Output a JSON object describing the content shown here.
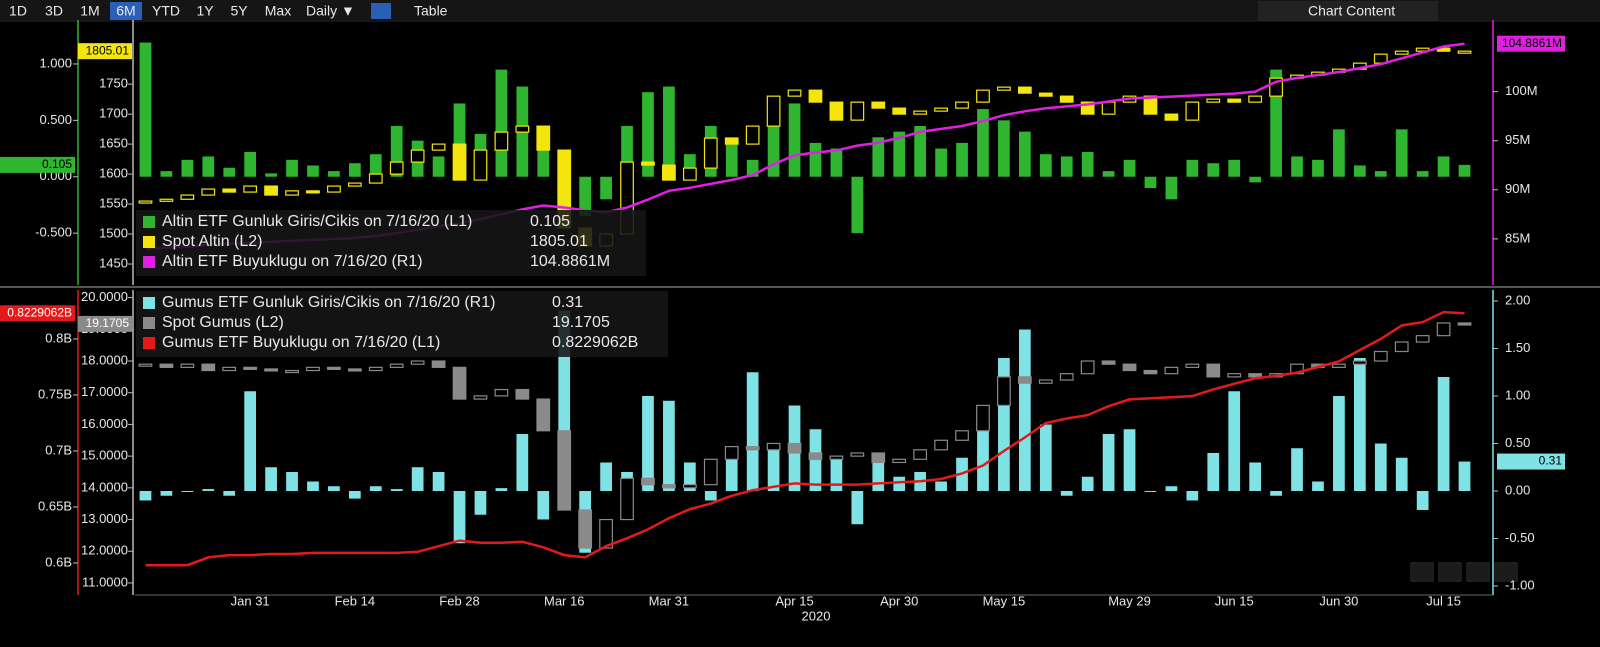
{
  "toolbar": {
    "ranges": [
      "1D",
      "3D",
      "1M",
      "6M",
      "YTD",
      "1Y",
      "5Y",
      "Max"
    ],
    "active": "6M",
    "interval": "Daily ▼",
    "table": "Table",
    "menu": "Chart Content"
  },
  "chart_data": {
    "type": "combo",
    "xlabel": "2020",
    "categories": [
      null,
      null,
      null,
      null,
      null,
      "Jan 31",
      null,
      null,
      null,
      null,
      "Feb 14",
      null,
      null,
      null,
      null,
      "Feb 28",
      null,
      null,
      null,
      null,
      "Mar 16",
      null,
      null,
      null,
      null,
      "Mar 31",
      null,
      null,
      null,
      null,
      null,
      "Apr 15",
      null,
      null,
      null,
      null,
      "Apr 30",
      null,
      null,
      null,
      null,
      "May 15",
      null,
      null,
      null,
      null,
      null,
      "May 29",
      null,
      null,
      null,
      null,
      "Jun 15",
      null,
      null,
      null,
      null,
      "Jun 30",
      null,
      null,
      null,
      null,
      "Jul 15",
      null
    ],
    "panels": [
      {
        "type": "combo",
        "axes": {
          "L1": {
            "lim": [
              -0.96,
              1.39
            ],
            "ticks": [
              {
                "value": -0.5,
                "label": "-0.500"
              },
              {
                "value": 0,
                "label": "0.000"
              },
              {
                "value": 0.5,
                "label": "0.500"
              },
              {
                "value": 1,
                "label": "1.000"
              }
            ]
          },
          "L2": {
            "lim": [
              1415,
              1857
            ],
            "ticks": [
              1450,
              1500,
              1550,
              1600,
              1650,
              1700,
              1750
            ]
          },
          "R1": {
            "lim": [
              80.3,
              107.3
            ],
            "ticks": [
              {
                "value": 85,
                "label": "85M"
              },
              {
                "value": 90,
                "label": "90M"
              },
              {
                "value": 95,
                "label": "95M"
              },
              {
                "value": 100,
                "label": "100M"
              }
            ]
          }
        },
        "series": [
          {
            "name": "Altin ETF Gunluk Giris/Cikis on 7/16/20 (L1)",
            "type": "bar",
            "axis": "L1",
            "color": "#2fb52f",
            "values": [
              1.19,
              0.05,
              0.15,
              0.18,
              0.08,
              0.22,
              0.03,
              0.15,
              0.1,
              0.05,
              0.12,
              0.2,
              0.45,
              0.32,
              0.18,
              0.65,
              0.38,
              0.95,
              0.8,
              0.25,
              -0.25,
              -0.35,
              -0.2,
              0.45,
              0.75,
              0.8,
              0.2,
              0.45,
              0.35,
              0.15,
              0.55,
              0.65,
              0.3,
              0.25,
              -0.5,
              0.35,
              0.4,
              0.45,
              0.25,
              0.3,
              0.6,
              0.5,
              0.4,
              0.2,
              0.18,
              0.22,
              0.05,
              0.15,
              -0.1,
              -0.2,
              0.15,
              0.12,
              0.15,
              -0.05,
              0.95,
              0.18,
              0.15,
              0.42,
              0.1,
              0.05,
              0.42,
              0.05,
              0.18,
              0.105
            ]
          },
          {
            "name": "Spot Altin (L2)",
            "type": "candle",
            "axis": "L2",
            "color": "#f4e60c",
            "values": [
              1555,
              1558,
              1565,
              1575,
              1570,
              1580,
              1565,
              1572,
              1570,
              1580,
              1585,
              1600,
              1620,
              1640,
              1650,
              1590,
              1640,
              1670,
              1680,
              1640,
              1510,
              1480,
              1500,
              1620,
              1615,
              1590,
              1610,
              1660,
              1650,
              1680,
              1730,
              1740,
              1720,
              1690,
              1720,
              1710,
              1700,
              1705,
              1710,
              1720,
              1740,
              1745,
              1735,
              1730,
              1720,
              1700,
              1720,
              1730,
              1700,
              1690,
              1720,
              1725,
              1720,
              1730,
              1760,
              1765,
              1770,
              1775,
              1785,
              1800,
              1805,
              1810,
              1805,
              1805.01
            ]
          },
          {
            "name": "Altin ETF Buyuklugu on 7/16/20 (R1)",
            "type": "line",
            "axis": "R1",
            "color": "#e020e0",
            "current_label": "104.8861M",
            "values": [
              84.0,
              84.1,
              84.2,
              84.4,
              84.5,
              84.6,
              84.7,
              84.8,
              84.9,
              85.0,
              85.1,
              85.3,
              85.6,
              85.9,
              86.3,
              86.6,
              87.0,
              87.5,
              88.0,
              88.4,
              88.2,
              87.9,
              87.7,
              88.2,
              89.0,
              89.9,
              90.2,
              90.6,
              91.0,
              91.5,
              92.6,
              93.5,
              93.8,
              94.0,
              94.5,
              94.8,
              95.3,
              95.9,
              96.2,
              96.5,
              97.0,
              97.6,
              98.0,
              98.3,
              98.5,
              98.7,
              99.0,
              99.3,
              99.4,
              99.5,
              99.6,
              99.7,
              99.8,
              100.0,
              101.0,
              101.4,
              101.7,
              102.0,
              102.4,
              102.8,
              103.4,
              104.0,
              104.6,
              104.8861
            ]
          }
        ]
      },
      {
        "type": "combo",
        "axes": {
          "L1": {
            "lim": [
              0.5714,
              0.8437
            ],
            "ticks": [
              {
                "value": 0.6,
                "label": "0.6B"
              },
              {
                "value": 0.65,
                "label": "0.65B"
              },
              {
                "value": 0.7,
                "label": "0.7B"
              },
              {
                "value": 0.75,
                "label": "0.75B"
              },
              {
                "value": 0.8,
                "label": "0.8B"
              }
            ]
          },
          "L2": {
            "lim": [
              10.62,
              20.24
            ],
            "ticks": [
              {
                "value": 11,
                "label": "11.0000"
              },
              {
                "value": 12,
                "label": "12.0000"
              },
              {
                "value": 13,
                "label": "13.0000"
              },
              {
                "value": 14,
                "label": "14.0000"
              },
              {
                "value": 15,
                "label": "15.0000"
              },
              {
                "value": 16,
                "label": "16.0000"
              },
              {
                "value": 17,
                "label": "17.0000"
              },
              {
                "value": 18,
                "label": "18.0000"
              },
              {
                "value": 19,
                "label": "19.0000"
              },
              {
                "value": 20,
                "label": "20.0000"
              }
            ]
          },
          "R1": {
            "lim": [
              -1.095,
              2.116
            ],
            "ticks": [
              {
                "value": -1,
                "label": "-1.00"
              },
              {
                "value": -0.5,
                "label": "-0.50"
              },
              {
                "value": 0,
                "label": "0.00"
              },
              {
                "value": 0.5,
                "label": "0.50"
              },
              {
                "value": 1,
                "label": "1.00"
              },
              {
                "value": 1.5,
                "label": "1.50"
              },
              {
                "value": 2,
                "label": "2.00"
              }
            ]
          }
        },
        "series": [
          {
            "name": "Gumus ETF Gunluk Giris/Cikis on 7/16/20 (R1)",
            "type": "bar",
            "axis": "R1",
            "color": "#7fe3e6",
            "values": [
              -0.1,
              -0.05,
              0.0,
              0.02,
              -0.05,
              1.05,
              0.25,
              0.2,
              0.1,
              0.05,
              -0.08,
              0.05,
              0.02,
              0.25,
              0.2,
              -0.55,
              -0.25,
              0.03,
              0.6,
              -0.3,
              1.9,
              -0.65,
              0.3,
              0.2,
              1.0,
              0.95,
              0.3,
              -0.1,
              0.35,
              1.25,
              0.5,
              0.9,
              0.65,
              0.35,
              -0.35,
              0.3,
              0.15,
              0.2,
              0.1,
              0.35,
              0.9,
              1.4,
              1.7,
              0.7,
              -0.05,
              0.15,
              0.6,
              0.65,
              0.0,
              0.05,
              -0.1,
              0.4,
              1.05,
              0.3,
              -0.05,
              0.45,
              0.1,
              1.0,
              1.4,
              0.5,
              0.35,
              -0.2,
              1.2,
              0.31
            ]
          },
          {
            "name": "Spot Gumus (L2)",
            "type": "candle",
            "axis": "L2",
            "color": "#8a8a8a",
            "values": [
              17.9,
              17.8,
              17.9,
              17.7,
              17.8,
              17.75,
              17.7,
              17.7,
              17.8,
              17.75,
              17.7,
              17.8,
              17.9,
              18.0,
              17.8,
              16.8,
              16.9,
              17.1,
              16.8,
              15.8,
              13.3,
              12.1,
              13.0,
              14.3,
              14.1,
              14.0,
              14.1,
              14.9,
              15.3,
              15.2,
              15.4,
              15.1,
              14.9,
              15.0,
              15.1,
              14.8,
              14.9,
              15.2,
              15.5,
              15.8,
              16.6,
              17.5,
              17.3,
              17.4,
              17.6,
              18.0,
              17.9,
              17.7,
              17.6,
              17.8,
              17.9,
              17.5,
              17.6,
              17.5,
              17.6,
              17.9,
              17.8,
              17.9,
              18.0,
              18.3,
              18.6,
              18.8,
              19.2,
              19.1705
            ]
          },
          {
            "name": "Gumus ETF Buyuklugu on 7/16/20 (L1)",
            "type": "line",
            "axis": "L1",
            "color": "#e41a1a",
            "current_label": "0.8229062B",
            "values": [
              0.598,
              0.598,
              0.598,
              0.605,
              0.607,
              0.607,
              0.608,
              0.608,
              0.609,
              0.609,
              0.609,
              0.609,
              0.609,
              0.61,
              0.615,
              0.62,
              0.618,
              0.618,
              0.619,
              0.614,
              0.607,
              0.605,
              0.615,
              0.622,
              0.63,
              0.64,
              0.648,
              0.653,
              0.66,
              0.665,
              0.668,
              0.671,
              0.67,
              0.67,
              0.67,
              0.671,
              0.672,
              0.673,
              0.675,
              0.68,
              0.687,
              0.7,
              0.712,
              0.725,
              0.729,
              0.732,
              0.74,
              0.746,
              0.747,
              0.748,
              0.749,
              0.755,
              0.76,
              0.765,
              0.767,
              0.77,
              0.775,
              0.78,
              0.79,
              0.8,
              0.812,
              0.815,
              0.824,
              0.8229062
            ]
          }
        ]
      }
    ]
  }
}
